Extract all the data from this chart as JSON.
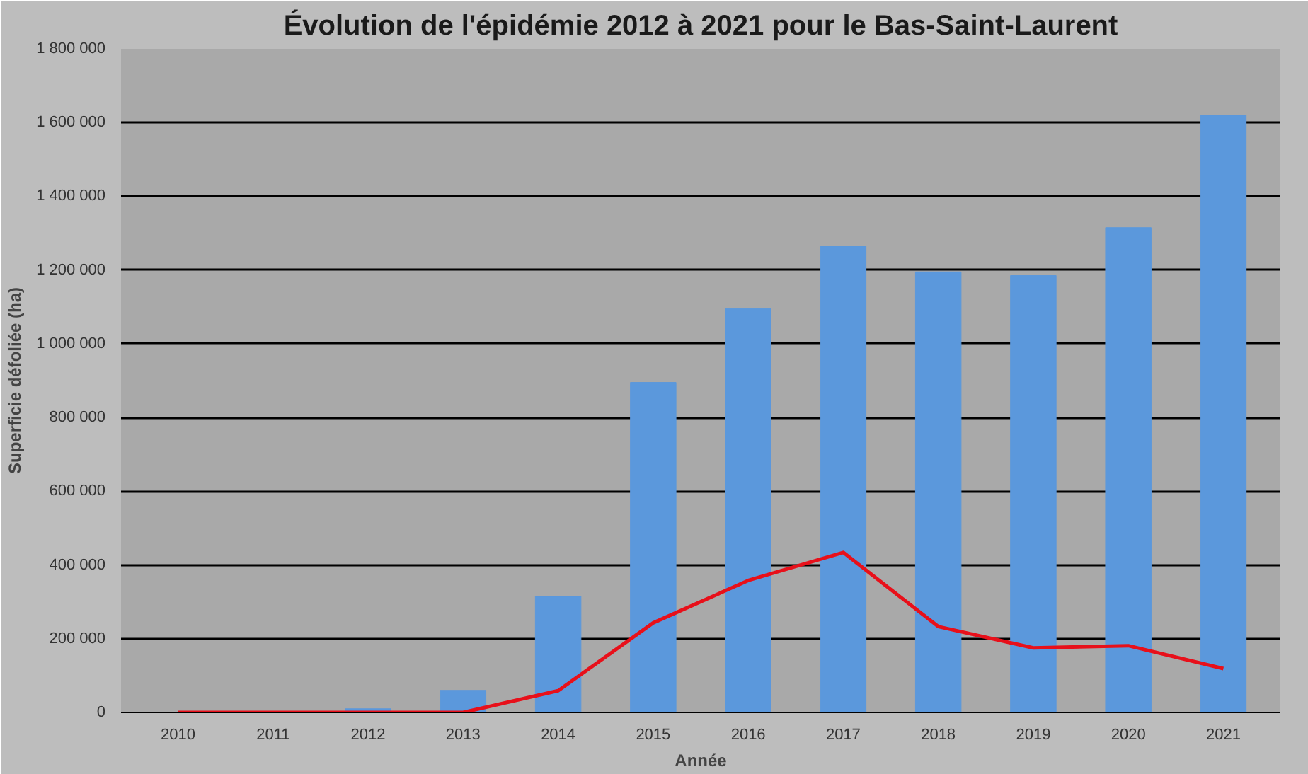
{
  "chart_data": {
    "type": "bar",
    "title": "Évolution de l'épidémie 2012 à 2021 pour le Bas-Saint-Laurent",
    "xlabel": "Année",
    "ylabel": "Superficie défoliée (ha)",
    "categories": [
      "2010",
      "2011",
      "2012",
      "2013",
      "2014",
      "2015",
      "2016",
      "2017",
      "2018",
      "2019",
      "2020",
      "2021"
    ],
    "series": [
      {
        "color": "#5b98dc",
        "values": [
          0,
          0,
          10000,
          60000,
          315000,
          895000,
          1095000,
          1265000,
          1195000,
          1185000,
          1315000,
          1620000
        ]
      },
      {
        "type": "line",
        "color": "#e8101a",
        "values": [
          0,
          0,
          0,
          0,
          59000,
          243000,
          358000,
          434000,
          233000,
          175000,
          181000,
          119000
        ]
      }
    ],
    "ylim": [
      0,
      1800000
    ],
    "yticks": [
      0,
      {
        "value": 200000,
        "label": "200 000"
      },
      {
        "value": 400000,
        "label": "400 000"
      },
      {
        "value": 600000,
        "label": "600 000"
      },
      {
        "value": 800000,
        "label": "800 000"
      },
      {
        "value": 1000000,
        "label": "1 000 000"
      },
      {
        "value": 1200000,
        "label": "1 200 000"
      },
      {
        "value": 1400000,
        "label": "1 400 000"
      },
      {
        "value": 1600000,
        "label": "1 600 000"
      },
      {
        "value": 1800000,
        "label": "1 800 000"
      }
    ],
    "grid": "y",
    "marker": "none",
    "line_style": "solid"
  }
}
